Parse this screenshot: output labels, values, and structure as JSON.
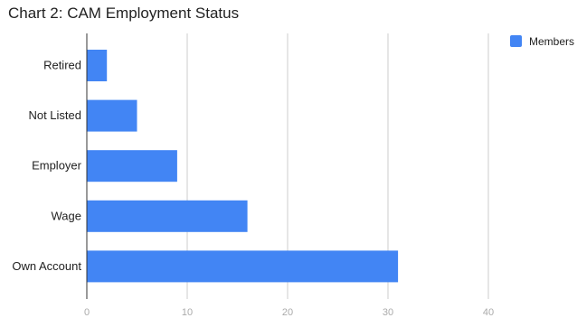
{
  "chart_data": {
    "type": "bar",
    "orientation": "horizontal",
    "title": "Chart 2: CAM Employment Status",
    "categories": [
      "Retired",
      "Not Listed",
      "Employer",
      "Wage",
      "Own Account"
    ],
    "series": [
      {
        "name": "Members",
        "values": [
          2,
          5,
          9,
          16,
          31
        ],
        "color": "#4285f4"
      }
    ],
    "x_ticks": [
      0,
      10,
      20,
      30,
      40
    ],
    "xlim": [
      0,
      45
    ],
    "xlabel": "",
    "ylabel": "",
    "grid": true,
    "legend_position": "top-right"
  }
}
